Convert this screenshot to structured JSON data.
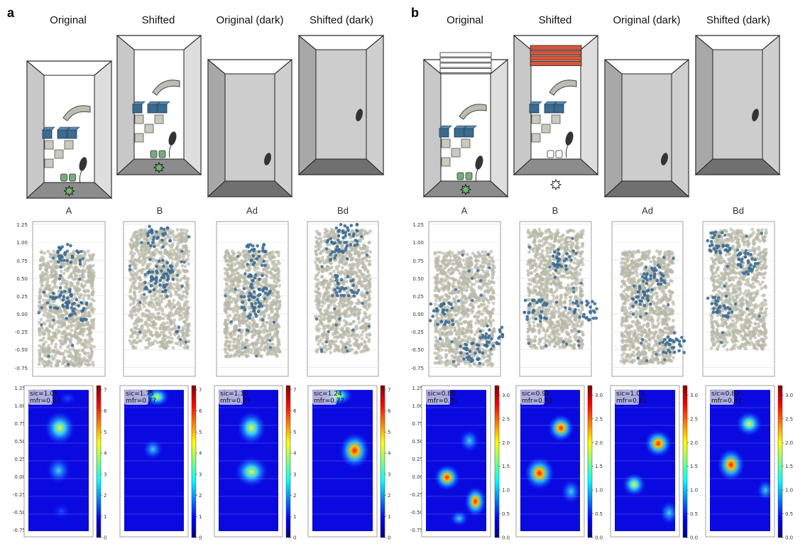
{
  "panels": [
    {
      "letter": "a",
      "conditions": [
        {
          "title": "Original",
          "cues": "white",
          "top": "none",
          "led": "green",
          "cups": "green",
          "dark": false
        },
        {
          "title": "Shifted",
          "cues": "white",
          "top": "none",
          "led": "green",
          "cups": "green",
          "dark": false
        },
        {
          "title": "Original (dark)",
          "cues": "none",
          "top": "none",
          "led": "none",
          "cups": "none",
          "dark": true
        },
        {
          "title": "Shifted (dark)",
          "cues": "none",
          "top": "none",
          "led": "none",
          "cups": "none",
          "dark": true
        }
      ],
      "trajectory_titles": [
        "A",
        "B",
        "Ad",
        "Bd"
      ],
      "ratemaps": [
        {
          "sic": "sic=1.05",
          "mfr": "mfr=0.77"
        },
        {
          "sic": "sic=1.75",
          "mfr": "mfr=0.77"
        },
        {
          "sic": "sic=1.16",
          "mfr": "mfr=0.77"
        },
        {
          "sic": "sic=1.24",
          "mfr": "mfr=0.77"
        }
      ],
      "colorbar_ticks": [
        "0",
        "1",
        "2",
        "3",
        "4",
        "5",
        "6",
        "7"
      ],
      "colorbar_max": 7.2
    },
    {
      "letter": "b",
      "conditions": [
        {
          "title": "Original",
          "cues": "white",
          "top": "white",
          "led": "green",
          "cups": "green",
          "dark": false
        },
        {
          "title": "Shifted",
          "cues": "white",
          "top": "orange",
          "led": "white",
          "cups": "white",
          "dark": false
        },
        {
          "title": "Original (dark)",
          "cues": "none",
          "top": "none",
          "led": "none",
          "cups": "none",
          "dark": true
        },
        {
          "title": "Shifted (dark)",
          "cues": "none",
          "top": "none",
          "led": "none",
          "cups": "none",
          "dark": true
        }
      ],
      "trajectory_titles": [
        "A",
        "B",
        "Ad",
        "Bd"
      ],
      "ratemaps": [
        {
          "sic": "sic=0.86",
          "mfr": "mfr=0.81"
        },
        {
          "sic": "sic=0.92",
          "mfr": "mfr=0.81"
        },
        {
          "sic": "sic=1.03",
          "mfr": "mfr=0.81"
        },
        {
          "sic": "sic=0.82",
          "mfr": "mfr=0.81"
        }
      ],
      "colorbar_ticks": [
        "0.0",
        "0.5",
        "1.0",
        "1.5",
        "2.0",
        "2.5",
        "3.0"
      ],
      "colorbar_max": 3.2
    }
  ],
  "y_ticks": [
    "1.25",
    "1.00",
    "0.75",
    "0.50",
    "0.25",
    "0.00",
    "-0.25",
    "-0.50",
    "-0.75"
  ],
  "colors": {
    "trajectory": "#b8b8a8",
    "spike": "#3d6d94",
    "cue_block": "#3b6b8f",
    "cup_green": "#7aab7f",
    "led_green": "#6fb56f",
    "orange_bar": "#d9553a"
  }
}
